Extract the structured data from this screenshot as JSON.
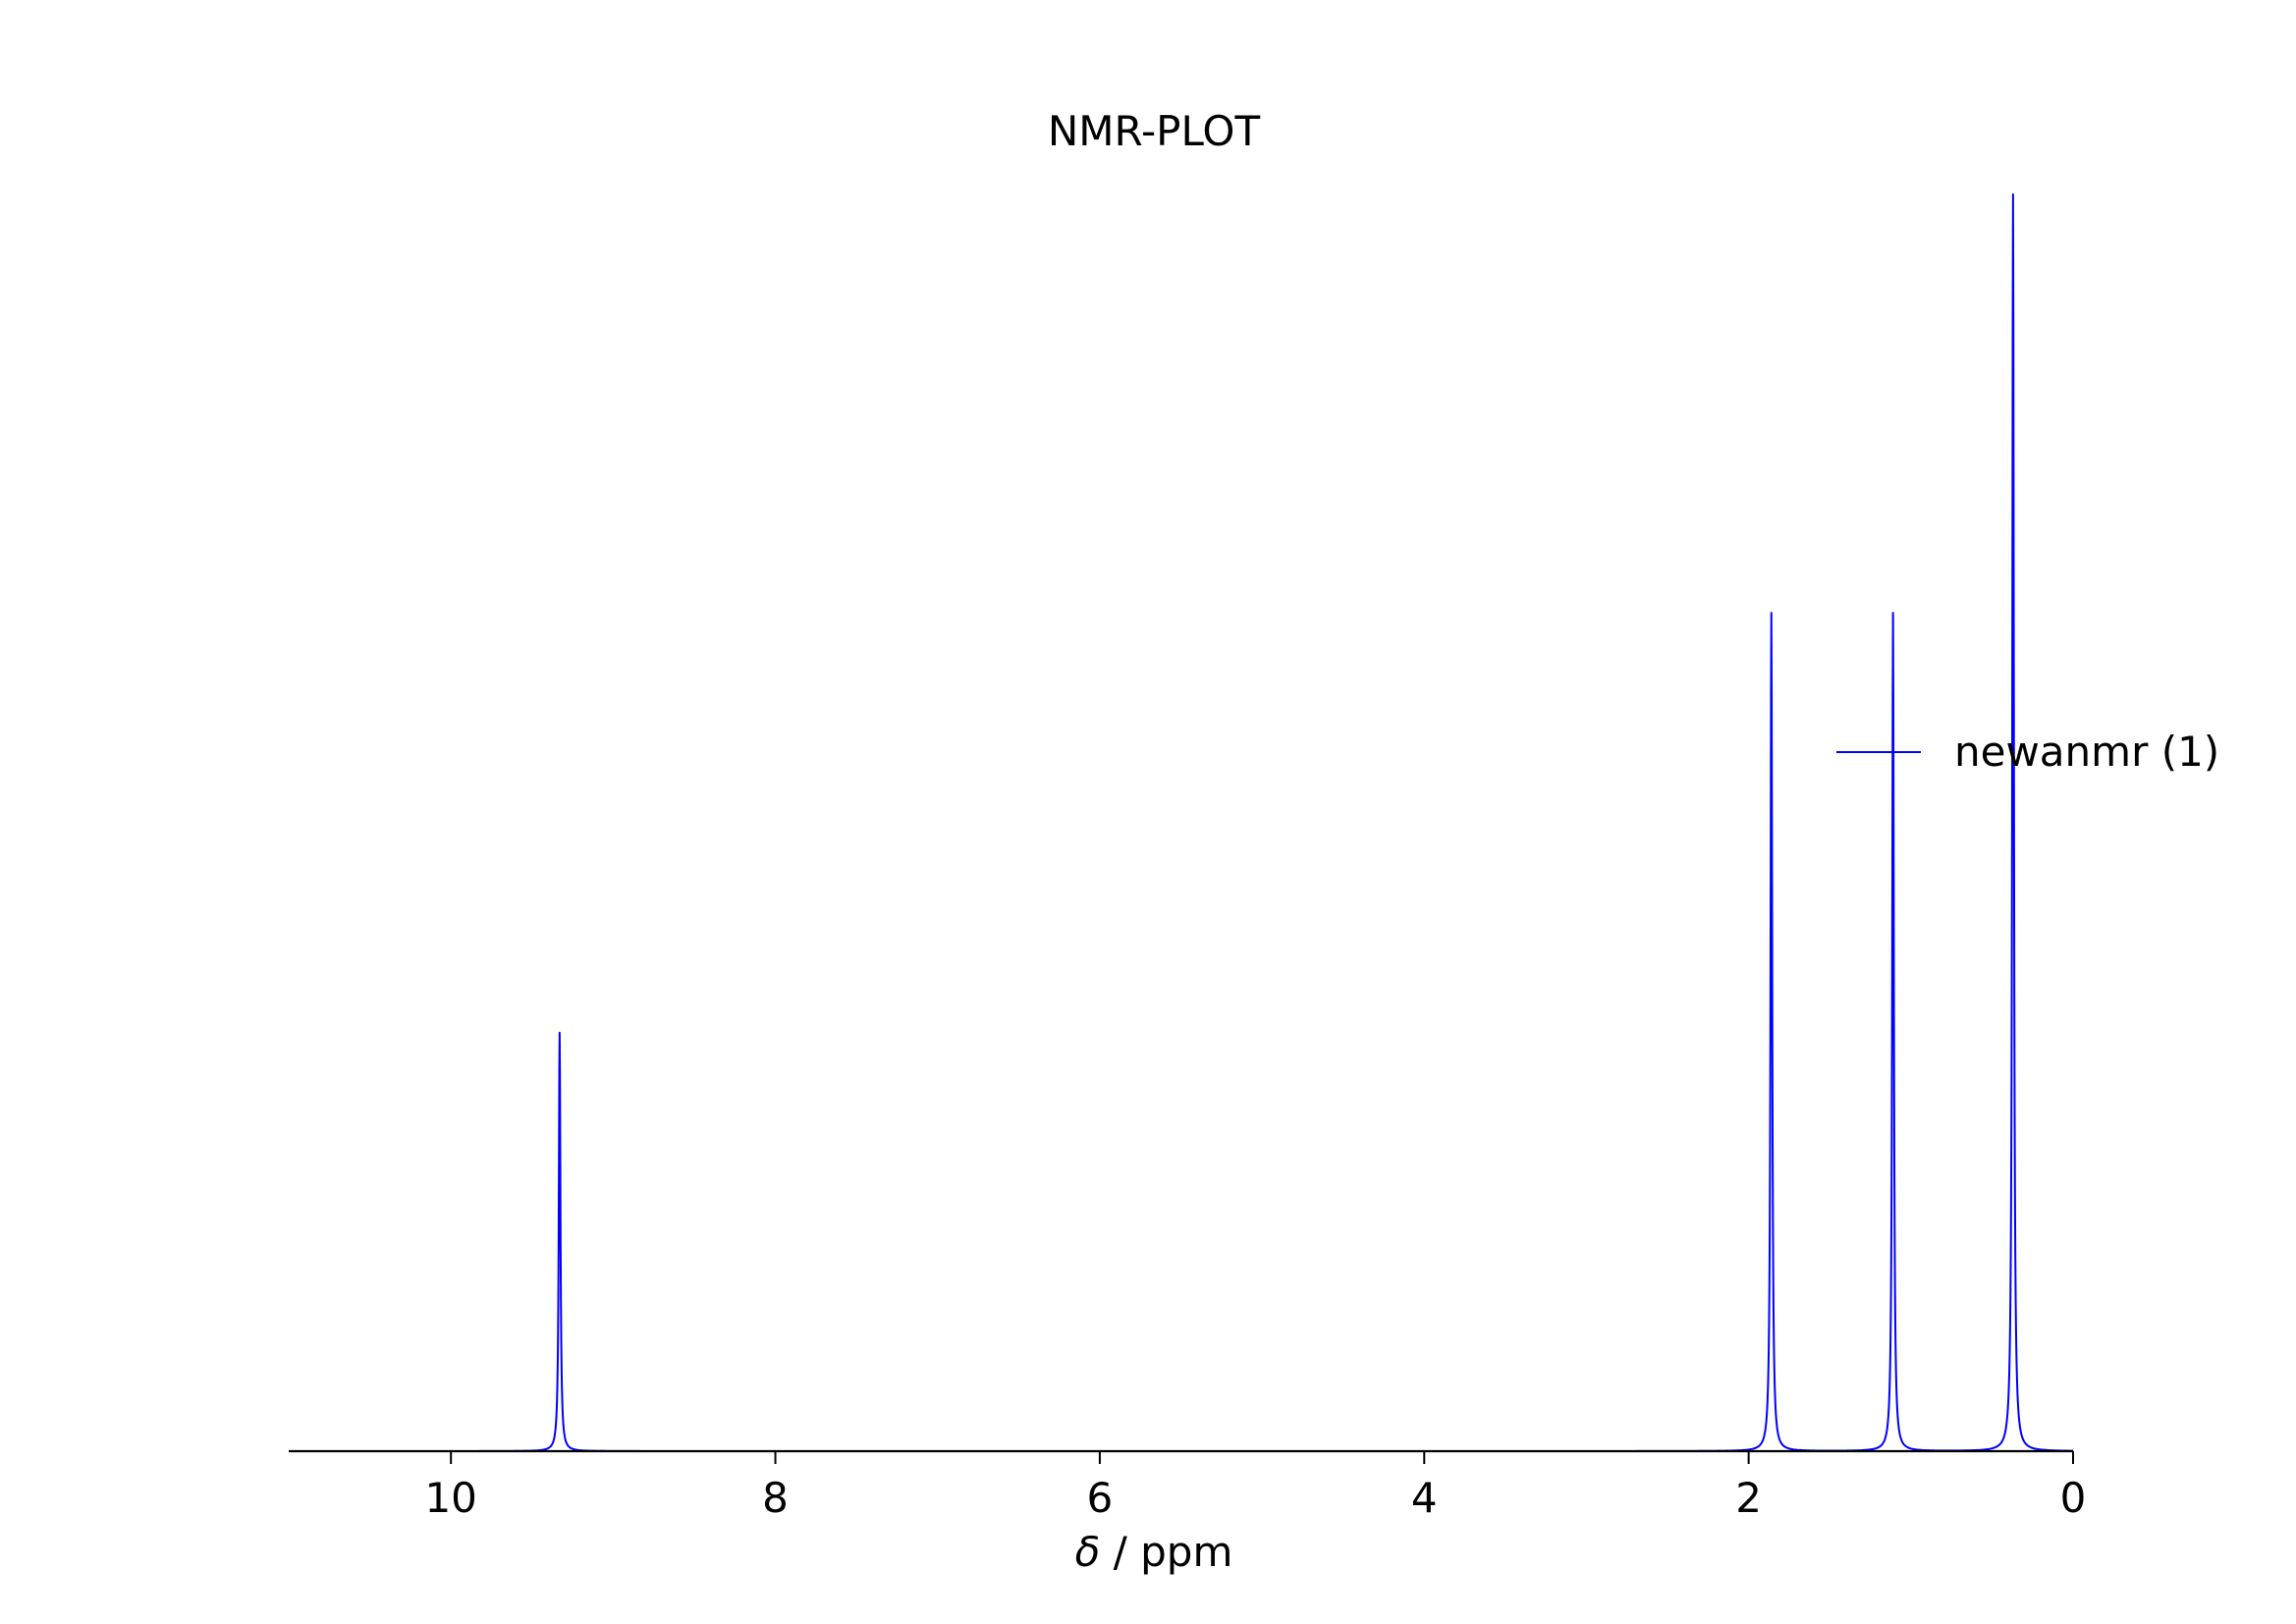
{
  "chart_data": {
    "type": "line",
    "title": "NMR-PLOT",
    "xlabel_symbol": "δ",
    "xlabel_unit": " / ppm",
    "xlim": [
      11,
      0
    ],
    "x_reversed": true,
    "x_ticks": [
      10,
      8,
      6,
      4,
      2,
      0
    ],
    "x_tick_labels": [
      "10",
      "8",
      "6",
      "4",
      "2",
      "0"
    ],
    "y_axis_visible": false,
    "grid": false,
    "legend_position": "center-right",
    "data_range": [
      10.3,
      0.0
    ],
    "series": [
      {
        "name": "newanmr (1)",
        "color": "#0000ff",
        "peaks": [
          {
            "shift": 9.33,
            "height": 0.333
          },
          {
            "shift": 1.86,
            "height": 0.667
          },
          {
            "shift": 1.11,
            "height": 0.667
          },
          {
            "shift": 0.37,
            "height": 1.0
          }
        ]
      }
    ]
  }
}
